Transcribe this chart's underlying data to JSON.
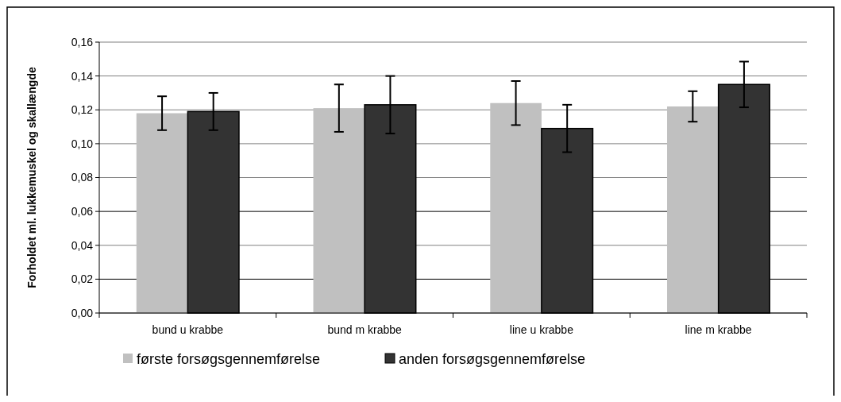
{
  "chart_data": {
    "type": "bar",
    "ylabel": "Forholdet ml. lukkemuskel og skallængde",
    "categories": [
      "bund u krabbe",
      "bund m krabbe",
      "line u krabbe",
      "line m krabbe"
    ],
    "series": [
      {
        "name": "første forsøgsgennemførelse",
        "color": "#c0c0c0",
        "values": [
          0.118,
          0.121,
          0.124,
          0.122
        ],
        "errors": [
          0.01,
          0.014,
          0.013,
          0.009
        ]
      },
      {
        "name": "anden forsøgsgennemførelse",
        "color": "#333333",
        "values": [
          0.119,
          0.123,
          0.109,
          0.135
        ],
        "errors": [
          0.011,
          0.017,
          0.014,
          0.0135
        ]
      }
    ],
    "ylim": [
      0,
      0.16
    ],
    "yticks": [
      {
        "value": 0,
        "label": "0,00"
      },
      {
        "value": 0.02,
        "label": "0,02"
      },
      {
        "value": 0.04,
        "label": "0,04"
      },
      {
        "value": 0.06,
        "label": "0,06"
      },
      {
        "value": 0.08,
        "label": "0,08"
      },
      {
        "value": 0.1,
        "label": "0,10"
      },
      {
        "value": 0.12,
        "label": "0,12"
      },
      {
        "value": 0.14,
        "label": "0,14"
      },
      {
        "value": 0.16,
        "label": "0,16"
      }
    ],
    "grid": "y",
    "legend": "bottom"
  }
}
